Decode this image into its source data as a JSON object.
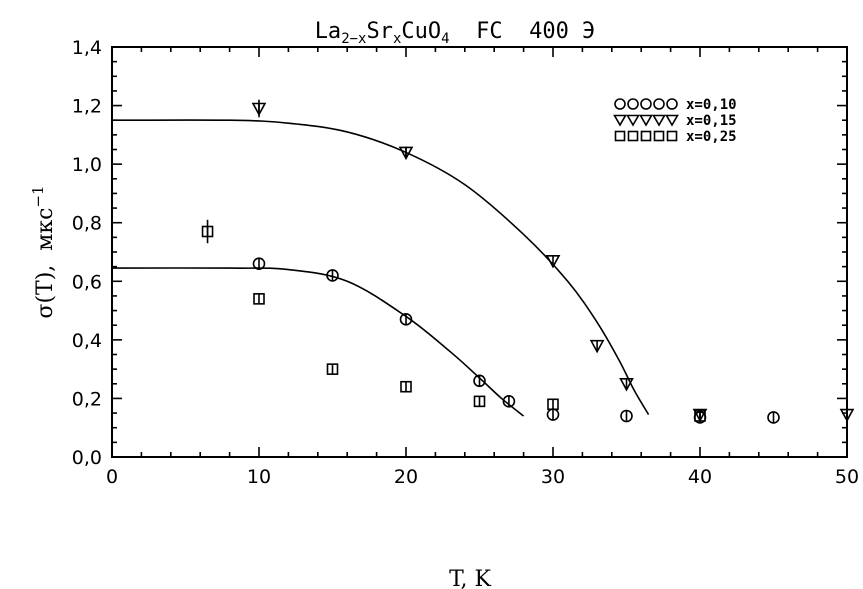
{
  "chart_data": {
    "type": "scatter",
    "title": {
      "prefix": "La",
      "sub1": "2−x",
      "mid1": "Sr",
      "sub2": "x",
      "mid2": "CuO",
      "sub3": "4",
      "suffix": "  FC  400 Э"
    },
    "xlabel": "T,  K",
    "ylabel": {
      "main": "σ(T),  мкс",
      "sup": "−1"
    },
    "xlim": [
      0,
      50
    ],
    "ylim": [
      0.0,
      1.4
    ],
    "x_ticks": [
      0,
      10,
      20,
      30,
      40,
      50
    ],
    "x_tick_labels": [
      "0",
      "10",
      "20",
      "30",
      "40",
      "50"
    ],
    "y_ticks": [
      0.0,
      0.2,
      0.4,
      0.6,
      0.8,
      1.0,
      1.2,
      1.4
    ],
    "y_tick_labels": [
      "0,0",
      "0,2",
      "0,4",
      "0,6",
      "0,8",
      "1,0",
      "1,2",
      "1,4"
    ],
    "grid": false,
    "legend_position": "top-right",
    "series": [
      {
        "name": "x=0,10",
        "legend_label": "x=0,10",
        "marker": "circle",
        "points": [
          {
            "x": 10,
            "y": 0.66
          },
          {
            "x": 15,
            "y": 0.62
          },
          {
            "x": 20,
            "y": 0.47
          },
          {
            "x": 25,
            "y": 0.26
          },
          {
            "x": 27,
            "y": 0.19
          },
          {
            "x": 30,
            "y": 0.145
          },
          {
            "x": 35,
            "y": 0.14
          },
          {
            "x": 40,
            "y": 0.135
          },
          {
            "x": 45,
            "y": 0.135
          }
        ]
      },
      {
        "name": "x=0,15",
        "legend_label": "x=0,15",
        "marker": "triangle-down",
        "points": [
          {
            "x": 10,
            "y": 1.19,
            "err": 0.03
          },
          {
            "x": 20,
            "y": 1.04,
            "err": 0.02
          },
          {
            "x": 30,
            "y": 0.67
          },
          {
            "x": 33,
            "y": 0.38
          },
          {
            "x": 35,
            "y": 0.25
          },
          {
            "x": 40,
            "y": 0.145
          },
          {
            "x": 50,
            "y": 0.145
          }
        ]
      },
      {
        "name": "x=0,25",
        "legend_label": "x=0,25",
        "marker": "square",
        "points": [
          {
            "x": 6.5,
            "y": 0.77,
            "err": 0.04
          },
          {
            "x": 10,
            "y": 0.54
          },
          {
            "x": 15,
            "y": 0.3
          },
          {
            "x": 20,
            "y": 0.24
          },
          {
            "x": 25,
            "y": 0.19
          },
          {
            "x": 30,
            "y": 0.18
          },
          {
            "x": 40,
            "y": 0.14
          }
        ]
      }
    ],
    "fit_curves": [
      {
        "for_series": "x=0,15",
        "points": [
          [
            0,
            1.15
          ],
          [
            8,
            1.15
          ],
          [
            12,
            1.14
          ],
          [
            16,
            1.11
          ],
          [
            20,
            1.04
          ],
          [
            24,
            0.93
          ],
          [
            28,
            0.76
          ],
          [
            31,
            0.6
          ],
          [
            33,
            0.46
          ],
          [
            34.5,
            0.33
          ],
          [
            35.5,
            0.23
          ],
          [
            36.5,
            0.145
          ]
        ]
      },
      {
        "for_series": "x=0,10",
        "points": [
          [
            0,
            0.645
          ],
          [
            8,
            0.645
          ],
          [
            12,
            0.64
          ],
          [
            16,
            0.6
          ],
          [
            20,
            0.48
          ],
          [
            23,
            0.36
          ],
          [
            25,
            0.27
          ],
          [
            26.5,
            0.2
          ],
          [
            28,
            0.14
          ]
        ]
      }
    ]
  }
}
